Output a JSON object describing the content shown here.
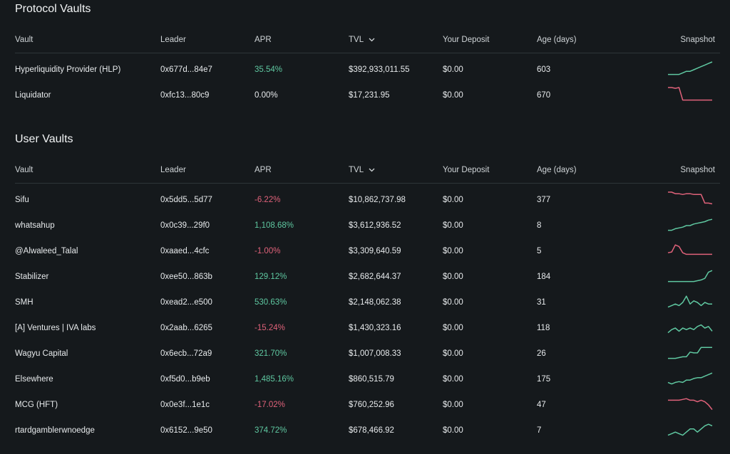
{
  "protocol_vaults": {
    "title": "Protocol Vaults",
    "headers": {
      "vault": "Vault",
      "leader": "Leader",
      "apr": "APR",
      "tvl": "TVL",
      "deposit": "Your Deposit",
      "age": "Age (days)",
      "snapshot": "Snapshot"
    },
    "rows": [
      {
        "vault": "Hyperliquidity Provider (HLP)",
        "leader": "0x677d...84e7",
        "apr": "35.54%",
        "tvl": "$392,933,011.55",
        "deposit": "$0.00",
        "age": "603",
        "trend": "pos",
        "snapshot": [
          2,
          2,
          2,
          2,
          3,
          4,
          4,
          5,
          6,
          7,
          8,
          9,
          10
        ]
      },
      {
        "vault": "Liquidator",
        "leader": "0xfc13...80c9",
        "apr": "0.00%",
        "tvl": "$17,231.95",
        "deposit": "$0.00",
        "age": "670",
        "trend": "neg",
        "snapshot": [
          10,
          10,
          9.5,
          10,
          2,
          2,
          2,
          2,
          2,
          2,
          2,
          2,
          2
        ]
      }
    ]
  },
  "user_vaults": {
    "title": "User Vaults",
    "headers": {
      "vault": "Vault",
      "leader": "Leader",
      "apr": "APR",
      "tvl": "TVL",
      "deposit": "Your Deposit",
      "age": "Age (days)",
      "snapshot": "Snapshot"
    },
    "rows": [
      {
        "vault": "Sifu",
        "leader": "0x5dd5...5d77",
        "apr": "-6.22%",
        "tvl": "$10,862,737.98",
        "deposit": "$0.00",
        "age": "377",
        "trend": "neg",
        "snapshot": [
          10,
          10,
          9,
          9,
          8.5,
          9,
          9,
          8.5,
          8.5,
          8.5,
          3,
          3,
          2.5
        ]
      },
      {
        "vault": "whatsahup",
        "leader": "0x0c39...29f0",
        "apr": "1,108.68%",
        "tvl": "$3,612,936.52",
        "deposit": "$0.00",
        "age": "8",
        "trend": "pos",
        "snapshot": [
          2,
          2,
          3,
          3.5,
          4,
          5,
          5,
          6,
          6.5,
          7,
          7.5,
          8.5,
          9
        ]
      },
      {
        "vault": "@Alwaleed_Talal",
        "leader": "0xaaed...4cfc",
        "apr": "-1.00%",
        "tvl": "$3,309,640.59",
        "deposit": "$0.00",
        "age": "5",
        "trend": "neg",
        "snapshot": [
          4,
          4.5,
          9,
          8,
          4,
          3,
          3,
          3,
          3,
          3,
          3,
          3,
          3
        ]
      },
      {
        "vault": "Stabilizer",
        "leader": "0xee50...863b",
        "apr": "129.12%",
        "tvl": "$2,682,644.37",
        "deposit": "$0.00",
        "age": "184",
        "trend": "pos",
        "snapshot": [
          2,
          2,
          2,
          2,
          2,
          2,
          2,
          2,
          2.5,
          3,
          4,
          8,
          9
        ]
      },
      {
        "vault": "SMH",
        "leader": "0xead2...e500",
        "apr": "530.63%",
        "tvl": "$2,148,062.38",
        "deposit": "$0.00",
        "age": "31",
        "trend": "pos",
        "snapshot": [
          2,
          3,
          4,
          3,
          5,
          9,
          4,
          6,
          5,
          3,
          5,
          4,
          4
        ]
      },
      {
        "vault": "[A] Ventures | IVA labs",
        "leader": "0x2aab...6265",
        "apr": "-15.24%",
        "tvl": "$1,430,323.16",
        "deposit": "$0.00",
        "age": "118",
        "trend": "pos",
        "snapshot": [
          2,
          4,
          5,
          3,
          5,
          4,
          5,
          4,
          6,
          7,
          5,
          6,
          3
        ]
      },
      {
        "vault": "Wagyu Capital",
        "leader": "0x6ecb...72a9",
        "apr": "321.70%",
        "tvl": "$1,007,008.33",
        "deposit": "$0.00",
        "age": "26",
        "trend": "pos",
        "snapshot": [
          2,
          2,
          2,
          2.5,
          3,
          3,
          6,
          5.5,
          5.5,
          9,
          9,
          9,
          9
        ]
      },
      {
        "vault": "Elsewhere",
        "leader": "0xf5d0...b9eb",
        "apr": "1,485.16%",
        "tvl": "$860,515.79",
        "deposit": "$0.00",
        "age": "175",
        "trend": "pos",
        "snapshot": [
          3,
          2,
          3,
          3.5,
          3,
          4.5,
          4.5,
          5.5,
          6,
          6,
          7,
          8,
          9
        ]
      },
      {
        "vault": "MCG (HFT)",
        "leader": "0x0e3f...1e1c",
        "apr": "-17.02%",
        "tvl": "$760,252.96",
        "deposit": "$0.00",
        "age": "47",
        "trend": "neg",
        "snapshot": [
          8,
          8,
          8,
          8,
          8.5,
          9,
          8,
          8,
          7,
          8,
          7,
          5,
          2
        ]
      },
      {
        "vault": "rtardgamblerwnoedge",
        "leader": "0x6152...9e50",
        "apr": "374.72%",
        "tvl": "$678,466.92",
        "deposit": "$0.00",
        "age": "7",
        "trend": "pos",
        "snapshot": [
          2,
          3,
          4,
          3,
          2,
          4,
          6,
          6,
          4,
          6,
          8,
          9,
          8
        ]
      }
    ]
  },
  "colors": {
    "positive": "#5fc8a1",
    "negative": "#e0627a",
    "background": "#15191c",
    "divider": "#2e3538"
  },
  "icons": {
    "tvl_sort": "chevron-down-icon"
  }
}
